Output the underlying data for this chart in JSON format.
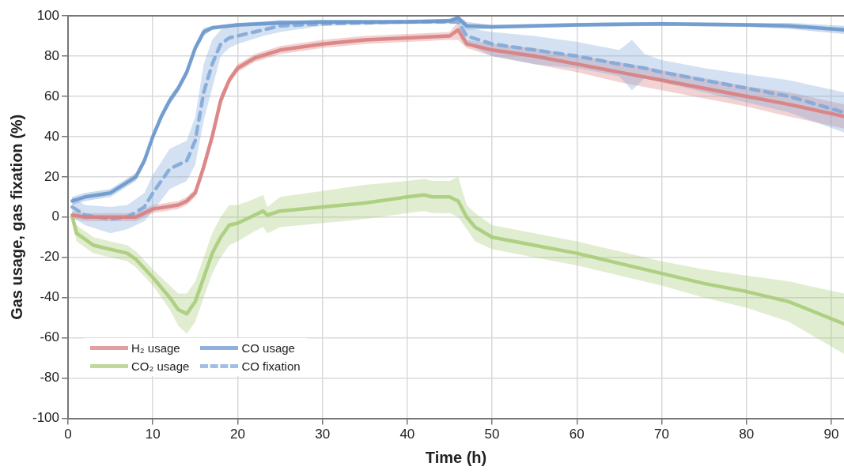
{
  "chart_data": {
    "type": "line",
    "xlabel": "Time (h)",
    "ylabel": "Gas usage, gas fixation (%)",
    "xlim": [
      0,
      91.5
    ],
    "xticks": [
      0,
      10,
      20,
      30,
      40,
      50,
      60,
      70,
      80,
      90
    ],
    "ylim": [
      -100,
      100
    ],
    "yticks": [
      -100,
      -80,
      -60,
      -40,
      -20,
      0,
      20,
      40,
      60,
      80,
      100
    ],
    "grid": true,
    "legend": "bottom left",
    "marker": "none",
    "series": [
      {
        "name": "H₂ usage",
        "color": "#d97f7f",
        "line_style": "solid",
        "x": [
          0.5,
          2,
          5,
          8,
          10,
          13,
          14,
          15,
          16,
          17,
          18,
          19,
          20,
          22,
          25,
          30,
          35,
          40,
          45,
          46,
          47,
          50,
          55,
          60,
          65,
          70,
          75,
          80,
          85,
          91.5
        ],
        "values": [
          1,
          0,
          0,
          0,
          4,
          6,
          8,
          12,
          25,
          40,
          58,
          68,
          74,
          79,
          83,
          86,
          88,
          89,
          90,
          93,
          86,
          83,
          80,
          76,
          72,
          68,
          64,
          60,
          56,
          50
        ],
        "lower": [
          -1,
          -2,
          -2,
          -2,
          2,
          4,
          6,
          10,
          22,
          37,
          55,
          66,
          72,
          77,
          81,
          84,
          86,
          87,
          88,
          88,
          84,
          80,
          76,
          72,
          67,
          63,
          59,
          55,
          50,
          44
        ],
        "upper": [
          3,
          2,
          2,
          2,
          6,
          8,
          10,
          14,
          28,
          43,
          61,
          70,
          76,
          81,
          85,
          88,
          90,
          91,
          92,
          97,
          88,
          86,
          84,
          80,
          77,
          73,
          69,
          65,
          62,
          56
        ]
      },
      {
        "name": "CO usage",
        "color": "#6a97cc",
        "line_style": "solid",
        "x": [
          0.5,
          2,
          5,
          8,
          9,
          10,
          11,
          12,
          13,
          14,
          15,
          16,
          17,
          20,
          25,
          30,
          40,
          45,
          46,
          47,
          50,
          60,
          70,
          80,
          85,
          91.5
        ],
        "values": [
          8,
          10,
          12,
          20,
          28,
          40,
          50,
          58,
          64,
          72,
          84,
          92,
          94,
          95.5,
          96.5,
          97,
          97,
          97.5,
          99,
          95,
          94.5,
          95.5,
          96,
          95.5,
          95,
          93
        ],
        "lower": [
          6,
          8,
          10,
          18,
          26,
          38,
          48,
          56,
          62,
          70,
          82,
          90,
          93,
          94.5,
          95.5,
          96,
          96,
          96.5,
          97,
          93,
          93.5,
          94.5,
          95,
          94.5,
          93.5,
          91
        ],
        "upper": [
          10,
          12,
          14,
          22,
          30,
          42,
          52,
          60,
          66,
          74,
          86,
          94,
          95,
          96.5,
          97.5,
          98,
          98,
          98.5,
          100,
          97,
          95.5,
          96.5,
          97,
          96.5,
          96.5,
          95
        ]
      },
      {
        "name": "CO fixation",
        "color": "#82a9d9",
        "line_style": "dashed",
        "x": [
          0.5,
          2,
          5,
          7,
          9,
          10,
          12,
          14,
          15,
          16,
          17,
          18,
          19,
          20,
          23,
          25,
          30,
          40,
          45,
          46,
          47,
          50,
          55,
          60,
          65,
          66.5,
          68,
          70,
          75,
          80,
          85,
          91.5
        ],
        "values": [
          5,
          1,
          -1,
          0,
          5,
          12,
          24,
          28,
          38,
          62,
          76,
          86,
          89,
          90,
          93,
          95,
          96,
          97,
          97,
          97,
          90,
          86,
          83,
          80,
          76,
          75,
          74,
          72,
          68,
          64,
          60,
          52
        ],
        "lower": [
          0,
          -4,
          -8,
          -6,
          -2,
          3,
          14,
          18,
          26,
          48,
          64,
          80,
          84,
          86,
          90,
          92,
          95,
          96,
          96,
          96,
          86,
          80,
          76,
          74,
          70,
          63,
          69,
          67,
          62,
          57,
          52,
          42
        ],
        "upper": [
          10,
          6,
          5,
          6,
          12,
          21,
          34,
          38,
          50,
          76,
          88,
          93,
          95,
          95,
          97,
          98,
          97,
          98,
          98,
          100,
          94,
          92,
          90,
          87,
          83,
          88,
          81,
          78,
          74,
          71,
          68,
          62
        ]
      },
      {
        "name": "CO₂ usage",
        "color": "#a9cc7a",
        "line_style": "solid",
        "x": [
          0.5,
          1,
          3,
          5,
          7,
          8,
          10,
          12,
          13,
          14,
          15,
          16,
          17,
          18,
          19,
          20,
          22,
          23,
          23.5,
          25,
          30,
          35,
          40,
          42,
          43,
          45,
          46,
          47,
          48,
          50,
          55,
          60,
          65,
          70,
          75,
          80,
          85,
          91.5
        ],
        "values": [
          0,
          -8,
          -14,
          -16,
          -18,
          -21,
          -30,
          -40,
          -46,
          -48,
          -42,
          -30,
          -18,
          -10,
          -4,
          -3,
          1,
          3,
          1,
          3,
          5,
          7,
          10,
          11,
          10,
          10,
          8,
          0,
          -5,
          -10,
          -14,
          -18,
          -23,
          -28,
          -33,
          -37,
          -42,
          -53
        ],
        "lower": [
          -3,
          -12,
          -18,
          -20,
          -22,
          -25,
          -34,
          -46,
          -54,
          -58,
          -52,
          -40,
          -28,
          -20,
          -14,
          -12,
          -7,
          -5,
          -8,
          -5,
          -3,
          -1,
          2,
          3,
          2,
          2,
          0,
          -6,
          -12,
          -16,
          -20,
          -24,
          -29,
          -34,
          -40,
          -45,
          -52,
          -68
        ],
        "upper": [
          3,
          -4,
          -10,
          -12,
          -14,
          -17,
          -26,
          -34,
          -38,
          -38,
          -32,
          -20,
          -8,
          0,
          6,
          6,
          9,
          11,
          5,
          10,
          13,
          16,
          18,
          19,
          18,
          18,
          20,
          6,
          2,
          -4,
          -8,
          -12,
          -17,
          -22,
          -26,
          -29,
          -32,
          -38
        ]
      }
    ]
  }
}
